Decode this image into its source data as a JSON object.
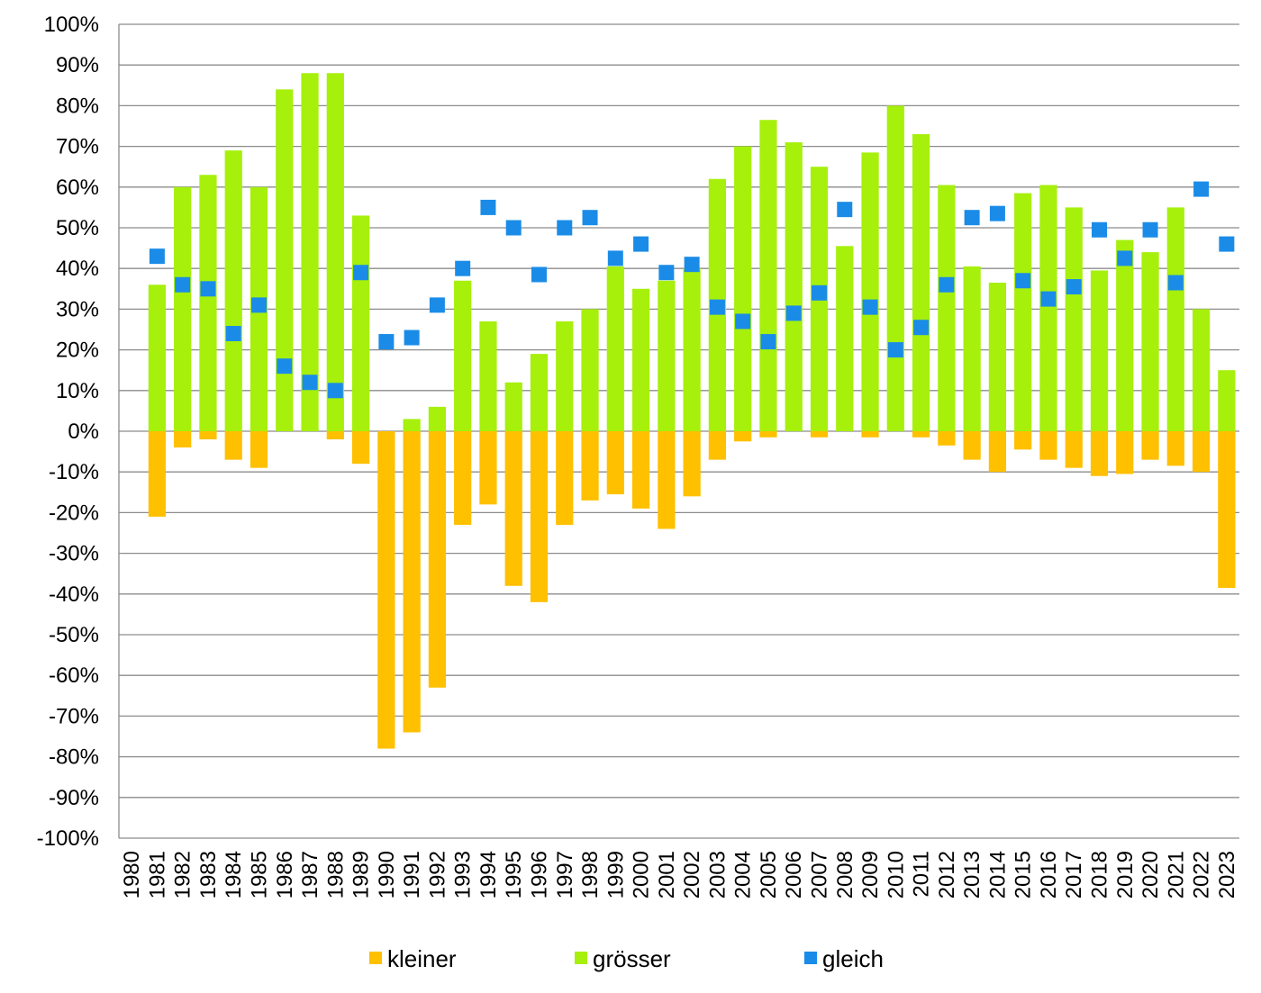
{
  "chart_data": {
    "type": "bar",
    "title": "",
    "xlabel": "",
    "ylabel": "",
    "ylim": [
      -100,
      100
    ],
    "y_tick_step": 10,
    "y_unit_suffix": "%",
    "grid": true,
    "legend_position": "bottom",
    "categories": [
      "1980",
      "1981",
      "1982",
      "1983",
      "1984",
      "1985",
      "1986",
      "1987",
      "1988",
      "1989",
      "1990",
      "1991",
      "1992",
      "1993",
      "1994",
      "1995",
      "1996",
      "1997",
      "1998",
      "1999",
      "2000",
      "2001",
      "2002",
      "2003",
      "2004",
      "2005",
      "2006",
      "2007",
      "2008",
      "2009",
      "2010",
      "2011",
      "2012",
      "2013",
      "2014",
      "2015",
      "2016",
      "2017",
      "2018",
      "2019",
      "2020",
      "2021",
      "2022",
      "2023"
    ],
    "series": [
      {
        "name": "kleiner",
        "kind": "bar",
        "color": "#FFC000",
        "values": [
          null,
          -21,
          -4,
          -2,
          -7,
          -9,
          0,
          0,
          -2,
          -8,
          -78,
          -74,
          -63,
          -23,
          -18,
          -38,
          -42,
          -23,
          -17,
          -15.5,
          -19,
          -24,
          -16,
          -7,
          -2.5,
          -1.5,
          0,
          -1.5,
          0,
          -1.5,
          0,
          -1.5,
          -3.5,
          -7,
          -10,
          -4.5,
          -7,
          -9,
          -11,
          -10.5,
          -7,
          -8.5,
          -10,
          -38.5
        ]
      },
      {
        "name": "grösser",
        "kind": "bar",
        "color": "#A6F00C",
        "values": [
          null,
          36,
          60,
          63,
          69,
          60,
          84,
          88,
          88,
          53,
          0,
          3,
          6,
          37,
          27,
          12,
          19,
          27,
          30,
          40.5,
          35,
          37,
          40,
          62,
          70,
          76.5,
          71,
          65,
          45.5,
          68.5,
          80,
          73,
          60.5,
          40.5,
          36.5,
          58.5,
          60.5,
          55,
          39.5,
          47,
          44,
          55,
          30,
          15
        ]
      },
      {
        "name": "gleich",
        "kind": "marker",
        "color": "#1A8CE8",
        "values": [
          null,
          43,
          36,
          35,
          24,
          31,
          16,
          12,
          10,
          39,
          22,
          23,
          31,
          40,
          55,
          50,
          38.5,
          50,
          52.5,
          42.5,
          46,
          39,
          41,
          30.5,
          27,
          22,
          29,
          34,
          54.5,
          30.5,
          20,
          25.5,
          36,
          52.5,
          53.5,
          37,
          32.5,
          35.5,
          49.5,
          42.5,
          49.5,
          36.5,
          59.5,
          46
        ]
      }
    ]
  }
}
